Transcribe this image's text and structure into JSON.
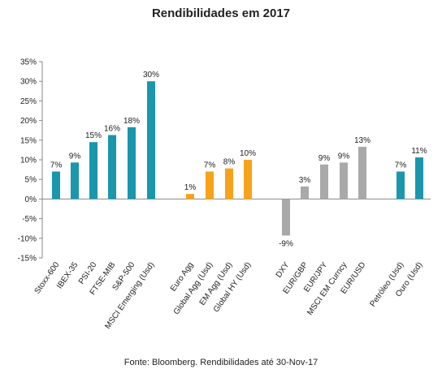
{
  "chart_data": {
    "type": "bar",
    "title": "Rendibilidades em 2017",
    "source": "Fonte: Bloomberg. Rendibilidades até 30-Nov-17",
    "xlabel": "",
    "ylabel": "",
    "ylim": [
      -15,
      35
    ],
    "yticks": [
      "-15%",
      "-10%",
      "-5%",
      "0%",
      "5%",
      "10%",
      "15%",
      "20%",
      "25%",
      "30%",
      "35%"
    ],
    "grid": false,
    "legend": "none",
    "colors": {
      "equity": "#1a96ad",
      "bonds": "#f7a21b",
      "fx": "#a9a9a9",
      "commodities": "#1a96ad"
    },
    "categories": [
      "Stoxx-600",
      "IBEX-35",
      "PSI-20",
      "FTSE-MIB",
      "S&P-500",
      "MSCI Emerging (Usd)",
      "Euro Agg",
      "Global Agg (Usd)",
      "EM Agg (Usd)",
      "Global HY (Usd)",
      "DXY",
      "EUR/GBP",
      "EUR/JPY",
      "MSCI EM Curncy",
      "EUR/USD",
      "Petróleo (Usd)",
      "Ouro (Usd)"
    ],
    "values": [
      7,
      9.3,
      14.5,
      16.3,
      18.3,
      30,
      1.3,
      7,
      7.8,
      10,
      -9.3,
      3.2,
      8.8,
      9.3,
      13.3,
      7,
      10.6
    ],
    "labels": [
      "7%",
      "9%",
      "15%",
      "16%",
      "18%",
      "30%",
      "1%",
      "7%",
      "8%",
      "10%",
      "-9%",
      "3%",
      "9%",
      "9%",
      "13%",
      "7%",
      "11%"
    ],
    "groups": [
      "equity",
      "equity",
      "equity",
      "equity",
      "equity",
      "equity",
      "bonds",
      "bonds",
      "bonds",
      "bonds",
      "fx",
      "fx",
      "fx",
      "fx",
      "fx",
      "commodities",
      "commodities"
    ]
  }
}
